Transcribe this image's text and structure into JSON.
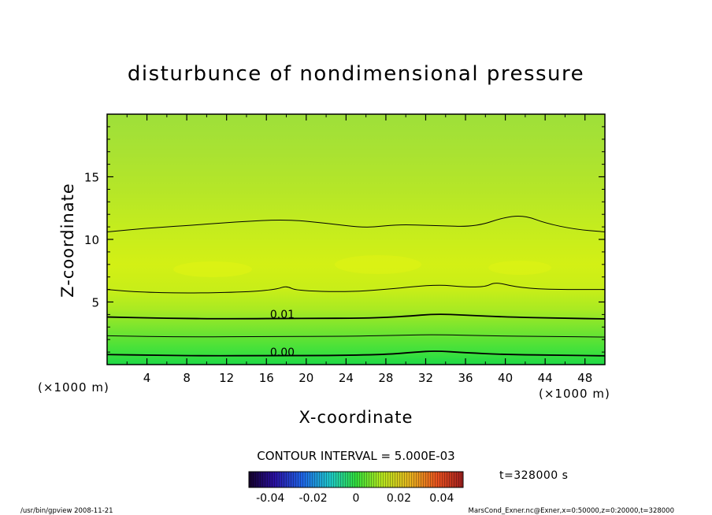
{
  "chart_data": {
    "type": "heatmap",
    "title": "disturbunce of nondimensional pressure",
    "xlabel": "X-coordinate",
    "ylabel": "Z-coordinate",
    "x_unit": "(×1000 m)",
    "y_unit": "(×1000 m)",
    "xlim": [
      0,
      50
    ],
    "ylim": [
      0,
      20
    ],
    "x_ticks": [
      "4",
      "8",
      "12",
      "16",
      "20",
      "24",
      "28",
      "32",
      "36",
      "40",
      "44",
      "48"
    ],
    "y_ticks": [
      "5",
      "10",
      "15"
    ],
    "contour_interval": "CONTOUR INTERVAL = 5.000E-03",
    "contour_labels": [
      {
        "text": "0.01",
        "x": 17.6,
        "z": 3.7
      },
      {
        "text": "0.00",
        "x": 17.6,
        "z": 0.7
      }
    ],
    "contours": [
      {
        "level": 0.0,
        "points": [
          [
            0,
            0.8
          ],
          [
            5,
            0.75
          ],
          [
            10,
            0.7
          ],
          [
            16,
            0.72
          ],
          [
            22,
            0.72
          ],
          [
            28,
            0.8
          ],
          [
            31,
            1.0
          ],
          [
            33,
            1.1
          ],
          [
            36,
            0.95
          ],
          [
            40,
            0.8
          ],
          [
            46,
            0.75
          ],
          [
            50,
            0.7
          ]
        ]
      },
      {
        "level": 0.005,
        "points": [
          [
            0,
            2.3
          ],
          [
            8,
            2.2
          ],
          [
            16,
            2.25
          ],
          [
            24,
            2.25
          ],
          [
            30,
            2.35
          ],
          [
            33,
            2.4
          ],
          [
            38,
            2.3
          ],
          [
            44,
            2.25
          ],
          [
            50,
            2.2
          ]
        ]
      },
      {
        "level": 0.01,
        "points": [
          [
            0,
            3.8
          ],
          [
            6,
            3.7
          ],
          [
            12,
            3.65
          ],
          [
            20,
            3.7
          ],
          [
            26,
            3.7
          ],
          [
            30,
            3.85
          ],
          [
            33,
            4.05
          ],
          [
            36,
            3.95
          ],
          [
            40,
            3.8
          ],
          [
            46,
            3.7
          ],
          [
            50,
            3.65
          ]
        ]
      },
      {
        "level": 0.015,
        "points": [
          [
            0,
            6.0
          ],
          [
            3,
            5.8
          ],
          [
            8,
            5.7
          ],
          [
            14,
            5.8
          ],
          [
            17,
            6.0
          ],
          [
            18,
            6.3
          ],
          [
            19,
            5.9
          ],
          [
            24,
            5.8
          ],
          [
            28,
            6.0
          ],
          [
            33,
            6.4
          ],
          [
            36,
            6.2
          ],
          [
            38,
            6.2
          ],
          [
            39,
            6.6
          ],
          [
            41,
            6.2
          ],
          [
            44,
            6.0
          ],
          [
            50,
            6.0
          ]
        ]
      },
      {
        "level": 0.02,
        "points": [
          [
            0,
            10.6
          ],
          [
            4,
            10.9
          ],
          [
            8,
            11.1
          ],
          [
            13,
            11.4
          ],
          [
            18,
            11.6
          ],
          [
            22,
            11.3
          ],
          [
            26,
            10.9
          ],
          [
            29,
            11.2
          ],
          [
            33,
            11.1
          ],
          [
            37,
            11.0
          ],
          [
            40,
            11.8
          ],
          [
            42,
            11.9
          ],
          [
            44,
            11.3
          ],
          [
            47,
            10.8
          ],
          [
            50,
            10.6
          ]
        ]
      }
    ],
    "colorbar": {
      "ticks": [
        "-0.04",
        "-0.02",
        "0",
        "0.02",
        "0.04"
      ],
      "range": [
        -0.05,
        0.05
      ]
    },
    "time_label": "t=328000 s",
    "footer_left": "/usr/bin/gpview   2008-11-21",
    "footer_right": "MarsCond_Exner.nc@Exner,x=0:50000,z=0:20000,t=328000"
  }
}
